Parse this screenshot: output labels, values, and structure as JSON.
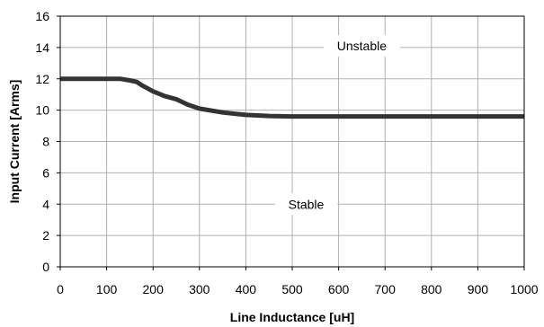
{
  "chart_data": {
    "type": "line",
    "title": "",
    "xlabel": "Line Inductance [uH]",
    "ylabel": "Input Current [Arms]",
    "xlim": [
      0,
      1000
    ],
    "ylim": [
      0,
      16
    ],
    "xticks": [
      0,
      100,
      200,
      300,
      400,
      500,
      600,
      700,
      800,
      900,
      1000
    ],
    "yticks": [
      0,
      2,
      4,
      6,
      8,
      10,
      12,
      14,
      16
    ],
    "grid": true,
    "legend": "none",
    "series": [
      {
        "color": "#333333",
        "x": [
          0,
          50,
          100,
          130,
          150,
          165,
          175,
          200,
          225,
          250,
          275,
          300,
          350,
          400,
          450,
          500,
          600,
          700,
          800,
          900,
          1000
        ],
        "y": [
          12.0,
          12.0,
          12.0,
          12.0,
          11.9,
          11.8,
          11.6,
          11.2,
          10.9,
          10.7,
          10.35,
          10.1,
          9.85,
          9.7,
          9.63,
          9.6,
          9.6,
          9.6,
          9.6,
          9.6,
          9.6
        ]
      }
    ],
    "annotations": [
      {
        "text": "Unstable",
        "x": 650,
        "y": 14.1
      },
      {
        "text": "Stable",
        "x": 530,
        "y": 4.0
      }
    ]
  }
}
